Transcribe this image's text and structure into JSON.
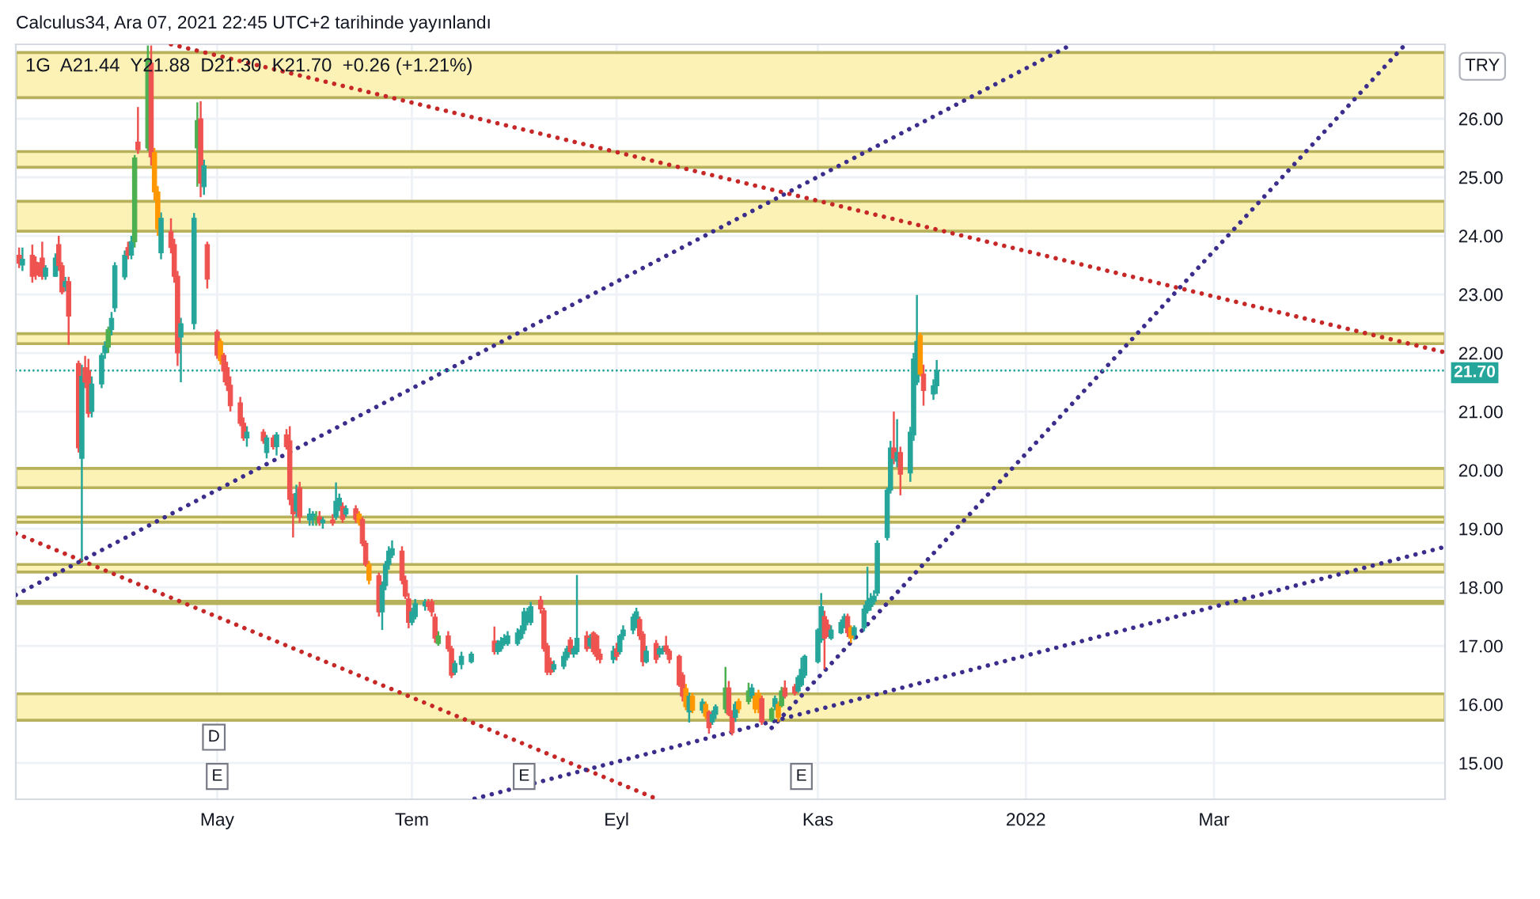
{
  "chart_data": {
    "type": "candlestick",
    "title": "Calculus34, Ara 07, 2021 22:45 UTC+2 tarihinde yayınlandı",
    "subtitle": "1G  A21.44  Y21.88  D21.30  K21.70  +0.26 (+1.21%)",
    "x": [
      "2021-03-04",
      "2021-03-05",
      "2021-03-08",
      "2021-03-09",
      "2021-03-10",
      "2021-03-11",
      "2021-03-12",
      "2021-03-15",
      "2021-03-16",
      "2021-03-17",
      "2021-03-18",
      "2021-03-19",
      "2021-03-22",
      "2021-03-23",
      "2021-03-24",
      "2021-03-25",
      "2021-03-26",
      "2021-03-29",
      "2021-03-30",
      "2021-03-31",
      "2021-04-01",
      "2021-04-02",
      "2021-04-05",
      "2021-04-06",
      "2021-04-07",
      "2021-04-08",
      "2021-04-09",
      "2021-04-12",
      "2021-04-13",
      "2021-04-14",
      "2021-04-15",
      "2021-04-16",
      "2021-04-19",
      "2021-04-20",
      "2021-04-21",
      "2021-04-22",
      "2021-04-26",
      "2021-04-27",
      "2021-04-28",
      "2021-04-29",
      "2021-04-30",
      "2021-05-03",
      "2021-05-04",
      "2021-05-05",
      "2021-05-06",
      "2021-05-07",
      "2021-05-10",
      "2021-05-11",
      "2021-05-12",
      "2021-05-17",
      "2021-05-18",
      "2021-05-20",
      "2021-05-21",
      "2021-05-24",
      "2021-05-25",
      "2021-05-26",
      "2021-05-27",
      "2021-05-28",
      "2021-05-31",
      "2021-06-01",
      "2021-06-02",
      "2021-06-03",
      "2021-06-04",
      "2021-06-07",
      "2021-06-08",
      "2021-06-09",
      "2021-06-10",
      "2021-06-11",
      "2021-06-14",
      "2021-06-15",
      "2021-06-16",
      "2021-06-17",
      "2021-06-18",
      "2021-06-21",
      "2021-06-22",
      "2021-06-23",
      "2021-06-24",
      "2021-06-25",
      "2021-06-28",
      "2021-06-29",
      "2021-06-30",
      "2021-07-01",
      "2021-07-02",
      "2021-07-05",
      "2021-07-06",
      "2021-07-07",
      "2021-07-08",
      "2021-07-09",
      "2021-07-12",
      "2021-07-13",
      "2021-07-14",
      "2021-07-16",
      "2021-07-19",
      "2021-07-26",
      "2021-07-27",
      "2021-07-28",
      "2021-07-29",
      "2021-07-30",
      "2021-08-02",
      "2021-08-03",
      "2021-08-04",
      "2021-08-05",
      "2021-08-06",
      "2021-08-09",
      "2021-08-10",
      "2021-08-11",
      "2021-08-12",
      "2021-08-13",
      "2021-08-16",
      "2021-08-17",
      "2021-08-18",
      "2021-08-19",
      "2021-08-20",
      "2021-08-23",
      "2021-08-24",
      "2021-08-25",
      "2021-08-26",
      "2021-08-27",
      "2021-08-31",
      "2021-09-01",
      "2021-09-02",
      "2021-09-03",
      "2021-09-06",
      "2021-09-07",
      "2021-09-08",
      "2021-09-09",
      "2021-09-10",
      "2021-09-13",
      "2021-09-14",
      "2021-09-15",
      "2021-09-16",
      "2021-09-17",
      "2021-09-20",
      "2021-09-21",
      "2021-09-22",
      "2021-09-23",
      "2021-09-24",
      "2021-09-27",
      "2021-09-28",
      "2021-09-29",
      "2021-09-30",
      "2021-10-01",
      "2021-10-04",
      "2021-10-05",
      "2021-10-06",
      "2021-10-07",
      "2021-10-08",
      "2021-10-11",
      "2021-10-12",
      "2021-10-13",
      "2021-10-14",
      "2021-10-15",
      "2021-10-18",
      "2021-10-19",
      "2021-10-20",
      "2021-10-21",
      "2021-10-22",
      "2021-10-25",
      "2021-10-26",
      "2021-10-27",
      "2021-10-28",
      "2021-11-01",
      "2021-11-02",
      "2021-11-03",
      "2021-11-04",
      "2021-11-05",
      "2021-11-08",
      "2021-11-09",
      "2021-11-10",
      "2021-11-11",
      "2021-11-12",
      "2021-11-15",
      "2021-11-16",
      "2021-11-17",
      "2021-11-18",
      "2021-11-19",
      "2021-11-22",
      "2021-11-23",
      "2021-11-24",
      "2021-11-25",
      "2021-11-26",
      "2021-11-29",
      "2021-11-30",
      "2021-12-01",
      "2021-12-02",
      "2021-12-03",
      "2021-12-06",
      "2021-12-07"
    ],
    "ohlc": [
      [
        23.67,
        23.8,
        23.45,
        23.53
      ],
      [
        23.5,
        23.8,
        23.4,
        23.6
      ],
      [
        23.67,
        23.85,
        23.2,
        23.31
      ],
      [
        23.55,
        23.65,
        23.25,
        23.33
      ],
      [
        23.45,
        23.55,
        23.3,
        23.35
      ],
      [
        23.62,
        23.9,
        23.25,
        23.31
      ],
      [
        23.31,
        23.5,
        23.25,
        23.45
      ],
      [
        23.31,
        23.7,
        23.3,
        23.62
      ],
      [
        23.85,
        24.0,
        23.4,
        23.49
      ],
      [
        23.49,
        23.55,
        23.0,
        23.04
      ],
      [
        23.13,
        23.3,
        23.05,
        23.22
      ],
      [
        23.22,
        23.3,
        22.14,
        22.63
      ],
      [
        21.82,
        21.87,
        20.3,
        20.38
      ],
      [
        20.2,
        21.8,
        18.45,
        21.6
      ],
      [
        21.75,
        21.95,
        21.4,
        21.5
      ],
      [
        21.7,
        21.9,
        20.9,
        20.97
      ],
      [
        21.0,
        21.6,
        20.9,
        21.47
      ],
      [
        21.47,
        22.0,
        21.4,
        21.96
      ],
      [
        22.0,
        22.2,
        21.9,
        22.12
      ],
      [
        22.1,
        22.45,
        22.0,
        22.4
      ],
      [
        22.4,
        22.7,
        22.3,
        22.59
      ],
      [
        22.77,
        23.55,
        22.7,
        23.49
      ],
      [
        23.3,
        23.75,
        23.25,
        23.67
      ],
      [
        23.8,
        23.9,
        23.6,
        23.67
      ],
      [
        23.67,
        24.0,
        23.6,
        23.9
      ],
      [
        23.9,
        25.38,
        23.8,
        25.33
      ],
      [
        25.6,
        26.2,
        25.4,
        25.47
      ],
      [
        25.5,
        27.25,
        25.45,
        27.0
      ],
      [
        26.95,
        27.25,
        25.2,
        25.35
      ],
      [
        25.42,
        25.5,
        24.6,
        24.75
      ],
      [
        24.75,
        24.85,
        24.0,
        24.12
      ],
      [
        23.71,
        24.4,
        23.6,
        24.3
      ],
      [
        24.07,
        24.3,
        23.7,
        23.8
      ],
      [
        23.85,
        23.95,
        23.2,
        23.31
      ],
      [
        23.31,
        23.4,
        21.78,
        22.0
      ],
      [
        22.27,
        22.6,
        21.5,
        22.5
      ],
      [
        22.5,
        24.39,
        22.4,
        24.3
      ],
      [
        25.5,
        26.28,
        24.84,
        25.97
      ],
      [
        26.0,
        26.3,
        24.66,
        24.9
      ],
      [
        24.84,
        25.3,
        24.7,
        25.2
      ],
      [
        23.85,
        23.9,
        23.1,
        23.26
      ],
      [
        22.36,
        22.4,
        21.9,
        21.96
      ],
      [
        22.2,
        22.25,
        21.8,
        21.87
      ],
      [
        21.96,
        22.0,
        21.5,
        21.69
      ],
      [
        21.75,
        21.85,
        21.35,
        21.45
      ],
      [
        21.45,
        21.6,
        21.0,
        21.1
      ],
      [
        21.15,
        21.25,
        20.75,
        20.8
      ],
      [
        20.8,
        20.9,
        20.5,
        20.55
      ],
      [
        20.55,
        20.75,
        20.4,
        20.65
      ],
      [
        20.65,
        20.7,
        20.45,
        20.5
      ],
      [
        20.3,
        20.6,
        20.2,
        20.55
      ],
      [
        20.55,
        20.6,
        20.35,
        20.4
      ],
      [
        20.4,
        20.65,
        20.25,
        20.6
      ],
      [
        20.6,
        20.7,
        20.35,
        20.4
      ],
      [
        20.5,
        20.75,
        19.4,
        19.5
      ],
      [
        19.5,
        19.6,
        18.85,
        19.25
      ],
      [
        19.3,
        19.75,
        19.2,
        19.6
      ],
      [
        19.7,
        19.8,
        19.1,
        19.2
      ],
      [
        19.15,
        19.35,
        19.05,
        19.25
      ],
      [
        19.15,
        19.3,
        19.05,
        19.25
      ],
      [
        19.15,
        19.3,
        19.05,
        19.2
      ],
      [
        19.2,
        19.3,
        19.05,
        19.1
      ],
      [
        19.1,
        19.2,
        19.0,
        19.15
      ],
      [
        19.15,
        19.25,
        19.05,
        19.1
      ],
      [
        19.2,
        19.79,
        19.15,
        19.47
      ],
      [
        19.38,
        19.6,
        19.3,
        19.52
      ],
      [
        19.38,
        19.45,
        19.1,
        19.16
      ],
      [
        19.25,
        19.4,
        19.2,
        19.34
      ],
      [
        19.34,
        19.4,
        19.1,
        19.16
      ],
      [
        19.25,
        19.3,
        19.05,
        19.11
      ],
      [
        19.16,
        19.2,
        18.7,
        18.75
      ],
      [
        18.75,
        18.8,
        18.35,
        18.39
      ],
      [
        18.39,
        18.45,
        18.05,
        18.12
      ],
      [
        18.2,
        18.25,
        17.5,
        17.58
      ],
      [
        17.58,
        18.1,
        17.27,
        18.03
      ],
      [
        18.03,
        18.45,
        17.95,
        18.39
      ],
      [
        18.39,
        18.7,
        18.3,
        18.62
      ],
      [
        18.55,
        18.8,
        18.5,
        18.66
      ],
      [
        18.62,
        18.7,
        18.05,
        18.12
      ],
      [
        18.12,
        18.2,
        17.8,
        17.85
      ],
      [
        17.8,
        17.9,
        17.3,
        17.4
      ],
      [
        17.4,
        17.65,
        17.35,
        17.58
      ],
      [
        17.5,
        17.8,
        17.45,
        17.72
      ],
      [
        17.68,
        17.8,
        17.6,
        17.75
      ],
      [
        17.75,
        17.8,
        17.6,
        17.67
      ],
      [
        17.75,
        17.8,
        17.5,
        17.58
      ],
      [
        17.49,
        17.55,
        17.05,
        17.13
      ],
      [
        17.04,
        17.25,
        17.0,
        17.17
      ],
      [
        17.17,
        17.25,
        16.9,
        16.95
      ],
      [
        16.95,
        17.0,
        16.45,
        16.5
      ],
      [
        16.55,
        16.75,
        16.5,
        16.7
      ],
      [
        16.68,
        16.9,
        16.6,
        16.82
      ],
      [
        16.73,
        16.9,
        16.7,
        16.86
      ],
      [
        17.08,
        17.33,
        16.85,
        16.9
      ],
      [
        16.9,
        17.1,
        16.85,
        17.04
      ],
      [
        16.95,
        17.15,
        16.9,
        17.08
      ],
      [
        17.04,
        17.2,
        17.0,
        17.13
      ],
      [
        17.04,
        17.25,
        17.0,
        17.17
      ],
      [
        17.04,
        17.3,
        17.0,
        17.22
      ],
      [
        17.13,
        17.35,
        17.1,
        17.27
      ],
      [
        17.27,
        17.65,
        17.2,
        17.58
      ],
      [
        17.4,
        17.65,
        17.35,
        17.58
      ],
      [
        17.4,
        17.75,
        17.35,
        17.67
      ],
      [
        17.78,
        17.85,
        17.55,
        17.63
      ],
      [
        17.6,
        17.65,
        16.9,
        16.95
      ],
      [
        17.0,
        17.05,
        16.5,
        16.55
      ],
      [
        16.73,
        16.8,
        16.5,
        16.55
      ],
      [
        16.6,
        16.75,
        16.55,
        16.68
      ],
      [
        16.65,
        16.9,
        16.6,
        16.82
      ],
      [
        16.8,
        17.0,
        16.75,
        16.95
      ],
      [
        17.1,
        17.15,
        16.85,
        16.9
      ],
      [
        16.86,
        17.0,
        16.8,
        16.95
      ],
      [
        16.9,
        18.21,
        16.85,
        17.13
      ],
      [
        17.17,
        17.25,
        16.9,
        16.95
      ],
      [
        17.0,
        17.2,
        16.95,
        17.13
      ],
      [
        17.22,
        17.25,
        16.85,
        16.9
      ],
      [
        17.17,
        17.2,
        16.75,
        16.82
      ],
      [
        16.86,
        16.95,
        16.7,
        16.77
      ],
      [
        16.77,
        17.0,
        16.7,
        16.91
      ],
      [
        16.95,
        17.05,
        16.75,
        16.82
      ],
      [
        16.9,
        17.2,
        16.85,
        17.17
      ],
      [
        17.17,
        17.35,
        17.1,
        17.27
      ],
      [
        17.27,
        17.55,
        17.2,
        17.49
      ],
      [
        17.35,
        17.65,
        17.3,
        17.58
      ],
      [
        17.45,
        17.5,
        17.1,
        17.17
      ],
      [
        17.2,
        17.25,
        16.65,
        16.73
      ],
      [
        16.73,
        17.0,
        16.7,
        16.91
      ],
      [
        17.04,
        17.1,
        16.7,
        16.77
      ],
      [
        16.86,
        17.0,
        16.8,
        16.95
      ],
      [
        16.9,
        17.0,
        16.85,
        16.95
      ],
      [
        17.0,
        17.17,
        16.85,
        16.91
      ],
      [
        16.91,
        16.95,
        16.7,
        16.77
      ],
      [
        16.82,
        16.85,
        16.3,
        16.33
      ],
      [
        16.5,
        16.55,
        16.05,
        16.14
      ],
      [
        16.27,
        16.35,
        15.9,
        15.96
      ],
      [
        15.87,
        16.2,
        15.69,
        16.14
      ],
      [
        16.14,
        16.2,
        15.85,
        15.9
      ],
      [
        15.9,
        16.1,
        15.85,
        16.04
      ],
      [
        16.0,
        16.05,
        15.75,
        15.8
      ],
      [
        15.87,
        15.9,
        15.5,
        15.6
      ],
      [
        15.7,
        15.9,
        15.65,
        15.83
      ],
      [
        15.83,
        16.0,
        15.75,
        15.96
      ],
      [
        15.92,
        16.64,
        15.85,
        16.28
      ],
      [
        16.28,
        16.4,
        15.8,
        15.83
      ],
      [
        15.87,
        15.9,
        15.47,
        15.52
      ],
      [
        15.78,
        16.05,
        15.7,
        16.0
      ],
      [
        16.05,
        16.1,
        15.85,
        15.92
      ],
      [
        16.05,
        16.37,
        16.0,
        16.23
      ],
      [
        16.14,
        16.35,
        16.1,
        16.28
      ],
      [
        16.14,
        16.2,
        15.85,
        15.92
      ],
      [
        16.19,
        16.25,
        15.85,
        15.92
      ],
      [
        16.1,
        16.15,
        15.65,
        15.7
      ],
      [
        15.74,
        15.95,
        15.7,
        15.92
      ],
      [
        15.96,
        16.15,
        15.9,
        16.1
      ],
      [
        16.0,
        16.05,
        15.7,
        15.78
      ],
      [
        15.98,
        16.3,
        15.95,
        16.23
      ],
      [
        16.28,
        16.41,
        16.1,
        16.14
      ],
      [
        16.3,
        16.35,
        16.15,
        16.19
      ],
      [
        16.23,
        16.5,
        16.2,
        16.46
      ],
      [
        16.33,
        16.8,
        16.3,
        16.6
      ],
      [
        16.5,
        16.85,
        16.45,
        16.82
      ],
      [
        16.73,
        17.3,
        16.7,
        17.27
      ],
      [
        17.1,
        17.9,
        17.05,
        17.67
      ],
      [
        17.5,
        17.6,
        16.6,
        17.13
      ],
      [
        17.36,
        17.45,
        17.15,
        17.22
      ],
      [
        17.13,
        17.35,
        17.1,
        17.27
      ],
      [
        17.22,
        17.45,
        17.2,
        17.4
      ],
      [
        17.36,
        17.55,
        17.3,
        17.5
      ],
      [
        17.5,
        17.55,
        17.15,
        17.22
      ],
      [
        17.31,
        17.35,
        17.05,
        17.13
      ],
      [
        17.18,
        17.35,
        17.1,
        17.31
      ],
      [
        17.31,
        17.7,
        17.25,
        17.63
      ],
      [
        17.6,
        18.35,
        17.55,
        17.76
      ],
      [
        17.67,
        17.9,
        17.6,
        17.81
      ],
      [
        17.76,
        17.95,
        17.7,
        17.85
      ],
      [
        17.9,
        18.8,
        17.85,
        18.75
      ],
      [
        18.85,
        19.7,
        18.8,
        19.66
      ],
      [
        19.66,
        20.5,
        19.6,
        20.38
      ],
      [
        20.38,
        21.0,
        20.1,
        20.2
      ],
      [
        20.15,
        20.87,
        20.05,
        20.3
      ],
      [
        20.3,
        20.4,
        19.57,
        19.93
      ],
      [
        19.95,
        20.74,
        19.8,
        20.65
      ],
      [
        20.6,
        22.0,
        20.5,
        21.9
      ],
      [
        21.5,
        22.99,
        21.45,
        22.2
      ],
      [
        22.3,
        22.35,
        21.6,
        21.64
      ],
      [
        21.64,
        21.8,
        21.1,
        21.36
      ],
      [
        21.3,
        21.55,
        21.2,
        21.44
      ],
      [
        21.44,
        21.88,
        21.3,
        21.7
      ]
    ],
    "colors": [
      "#ef5350",
      "#26a69a",
      "#ef5350",
      "#ef5350",
      "#ef5350",
      "#ef5350",
      "#26a69a",
      "#26a69a",
      "#ef5350",
      "#ef5350",
      "#26a69a",
      "#ef5350",
      "#ef5350",
      "#26a69a",
      "#ef5350",
      "#ef5350",
      "#26a69a",
      "#26a69a",
      "#26a69a",
      "#4caf50",
      "#26a69a",
      "#26a69a",
      "#26a69a",
      "#ef5350",
      "#26a69a",
      "#4caf50",
      "#ef5350",
      "#4caf50",
      "#ef5350",
      "#ff9800",
      "#ff9800",
      "#26a69a",
      "#ef5350",
      "#ef5350",
      "#ef5350",
      "#26a69a",
      "#26a69a",
      "#4caf50",
      "#ef5350",
      "#26a69a",
      "#ef5350",
      "#ef5350",
      "#ff9800",
      "#ef5350",
      "#ef5350",
      "#ef5350",
      "#ef5350",
      "#ef5350",
      "#26a69a",
      "#ef5350",
      "#26a69a",
      "#ef5350",
      "#26a69a",
      "#ef5350",
      "#ef5350",
      "#ef5350",
      "#26a69a",
      "#ef5350",
      "#26a69a",
      "#26a69a",
      "#4caf50",
      "#ef5350",
      "#26a69a",
      "#ef5350",
      "#26a69a",
      "#26a69a",
      "#ef5350",
      "#26a69a",
      "#ef5350",
      "#ff9800",
      "#ef5350",
      "#ef5350",
      "#ff9800",
      "#ef5350",
      "#26a69a",
      "#26a69a",
      "#26a69a",
      "#26a69a",
      "#ef5350",
      "#ef5350",
      "#ef5350",
      "#26a69a",
      "#26a69a",
      "#26a69a",
      "#ef5350",
      "#ef5350",
      "#ef5350",
      "#4caf50",
      "#ef5350",
      "#ef5350",
      "#26a69a",
      "#26a69a",
      "#26a69a",
      "#ef5350",
      "#26a69a",
      "#26a69a",
      "#26a69a",
      "#26a69a",
      "#26a69a",
      "#26a69a",
      "#26a69a",
      "#26a69a",
      "#26a69a",
      "#ef5350",
      "#ef5350",
      "#ef5350",
      "#ef5350",
      "#26a69a",
      "#26a69a",
      "#26a69a",
      "#ef5350",
      "#26a69a",
      "#26a69a",
      "#ef5350",
      "#26a69a",
      "#ef5350",
      "#ef5350",
      "#ef5350",
      "#26a69a",
      "#ef5350",
      "#26a69a",
      "#26a69a",
      "#26a69a",
      "#26a69a",
      "#ef5350",
      "#ef5350",
      "#26a69a",
      "#ef5350",
      "#26a69a",
      "#26a69a",
      "#ef5350",
      "#ef5350",
      "#ef5350",
      "#ef5350",
      "#ff9800",
      "#26a69a",
      "#ff9800",
      "#26a69a",
      "#ff9800",
      "#ef5350",
      "#26a69a",
      "#26a69a",
      "#4caf50",
      "#ef5350",
      "#ef5350",
      "#26a69a",
      "#ff9800",
      "#4caf50",
      "#26a69a",
      "#ff9800",
      "#ff9800",
      "#ef5350",
      "#4caf50",
      "#26a69a",
      "#ff9800",
      "#4caf50",
      "#ef5350",
      "#ef5350",
      "#26a69a",
      "#26a69a",
      "#26a69a",
      "#26a69a",
      "#26a69a",
      "#ef5350",
      "#ef5350",
      "#26a69a",
      "#26a69a",
      "#26a69a",
      "#ef5350",
      "#ff9800",
      "#26a69a",
      "#26a69a",
      "#26a69a",
      "#26a69a",
      "#26a69a",
      "#26a69a",
      "#26a69a",
      "#26a69a",
      "#ef5350",
      "#26a69a",
      "#ef5350",
      "#26a69a",
      "#26a69a",
      "#26a69a",
      "#ff9800",
      "#ef5350",
      "#26a69a",
      "#26a69a"
    ],
    "series": [
      {
        "type": "line",
        "color": "#c62828",
        "x": [
          "2021-04-19",
          "2022-05-10"
        ],
        "values": [
          27.27,
          22.01
        ]
      },
      {
        "type": "line",
        "color": "#c62828",
        "x": [
          "2021-03-03",
          "2021-09-13"
        ],
        "values": [
          18.92,
          14.39
        ]
      },
      {
        "type": "line",
        "color": "#3a2d8c",
        "x": [
          "2021-03-03",
          "2022-01-17"
        ],
        "values": [
          17.87,
          27.27
        ]
      },
      {
        "type": "line",
        "color": "#3a2d8c",
        "x": [
          "2021-07-20",
          "2022-05-10"
        ],
        "values": [
          14.39,
          18.69
        ]
      },
      {
        "type": "line",
        "color": "#3a2d8c",
        "x": [
          "2021-10-18",
          "2022-04-28"
        ],
        "values": [
          15.6,
          27.27
        ]
      }
    ],
    "line_style": "dotted",
    "bands": [
      {
        "axis": "y",
        "from": 26.36,
        "to": 27.13,
        "color": "#fdf2b6"
      },
      {
        "axis": "y",
        "from": 25.17,
        "to": 25.44,
        "color": "#fdf2b6"
      },
      {
        "axis": "y",
        "from": 24.08,
        "to": 24.59,
        "color": "#fdf2b6"
      },
      {
        "axis": "y",
        "from": 22.16,
        "to": 22.33,
        "color": "#fdf2b6"
      },
      {
        "axis": "y",
        "from": 19.7,
        "to": 20.03,
        "color": "#fdf2b6"
      },
      {
        "axis": "y",
        "from": 19.11,
        "to": 19.2,
        "color": "#fdf2b6"
      },
      {
        "axis": "y",
        "from": 18.26,
        "to": 18.39,
        "color": "#fdf2b6"
      },
      {
        "axis": "y",
        "from": 17.72,
        "to": 17.76,
        "color": "#fdf2b6"
      },
      {
        "axis": "y",
        "from": 15.73,
        "to": 16.18,
        "color": "#fdf2b6"
      }
    ],
    "ref_lines": [
      {
        "axis": "y",
        "value": 21.7,
        "label": "21.70",
        "color": "#26a69a",
        "line_style": "dotted"
      }
    ],
    "annotations": [
      "TRY",
      {
        "text": "D",
        "x": "2021-05-02",
        "y": 15.44
      },
      {
        "text": "E",
        "x": "2021-05-03",
        "y": 14.77
      },
      {
        "text": "E",
        "x": "2021-08-04",
        "y": 14.77
      },
      {
        "text": "E",
        "x": "2021-10-27",
        "y": 14.77
      }
    ],
    "xlim": [
      "2021-03-03",
      "2022-05-10"
    ],
    "xticks": [
      {
        "value": "2021-05-03",
        "label": "May"
      },
      {
        "value": "2021-07-01",
        "label": "Tem"
      },
      {
        "value": "2021-09-01",
        "label": "Eyl"
      },
      {
        "value": "2021-11-01",
        "label": "Kas"
      },
      {
        "value": "2022-01-03",
        "label": "2022"
      },
      {
        "value": "2022-03-01",
        "label": "Mar"
      }
    ],
    "ylim": [
      14.38,
      27.27
    ],
    "yticks": [
      {
        "value": 15,
        "label": "15.00"
      },
      {
        "value": 16,
        "label": "16.00"
      },
      {
        "value": 17,
        "label": "17.00"
      },
      {
        "value": 18,
        "label": "18.00"
      },
      {
        "value": 19,
        "label": "19.00"
      },
      {
        "value": 20,
        "label": "20.00"
      },
      {
        "value": 21,
        "label": "21.00"
      },
      {
        "value": 22,
        "label": "22.00"
      },
      {
        "value": 23,
        "label": "23.00"
      },
      {
        "value": 24,
        "label": "24.00"
      },
      {
        "value": 25,
        "label": "25.00"
      },
      {
        "value": 26,
        "label": "26.00"
      }
    ],
    "grid": true
  }
}
